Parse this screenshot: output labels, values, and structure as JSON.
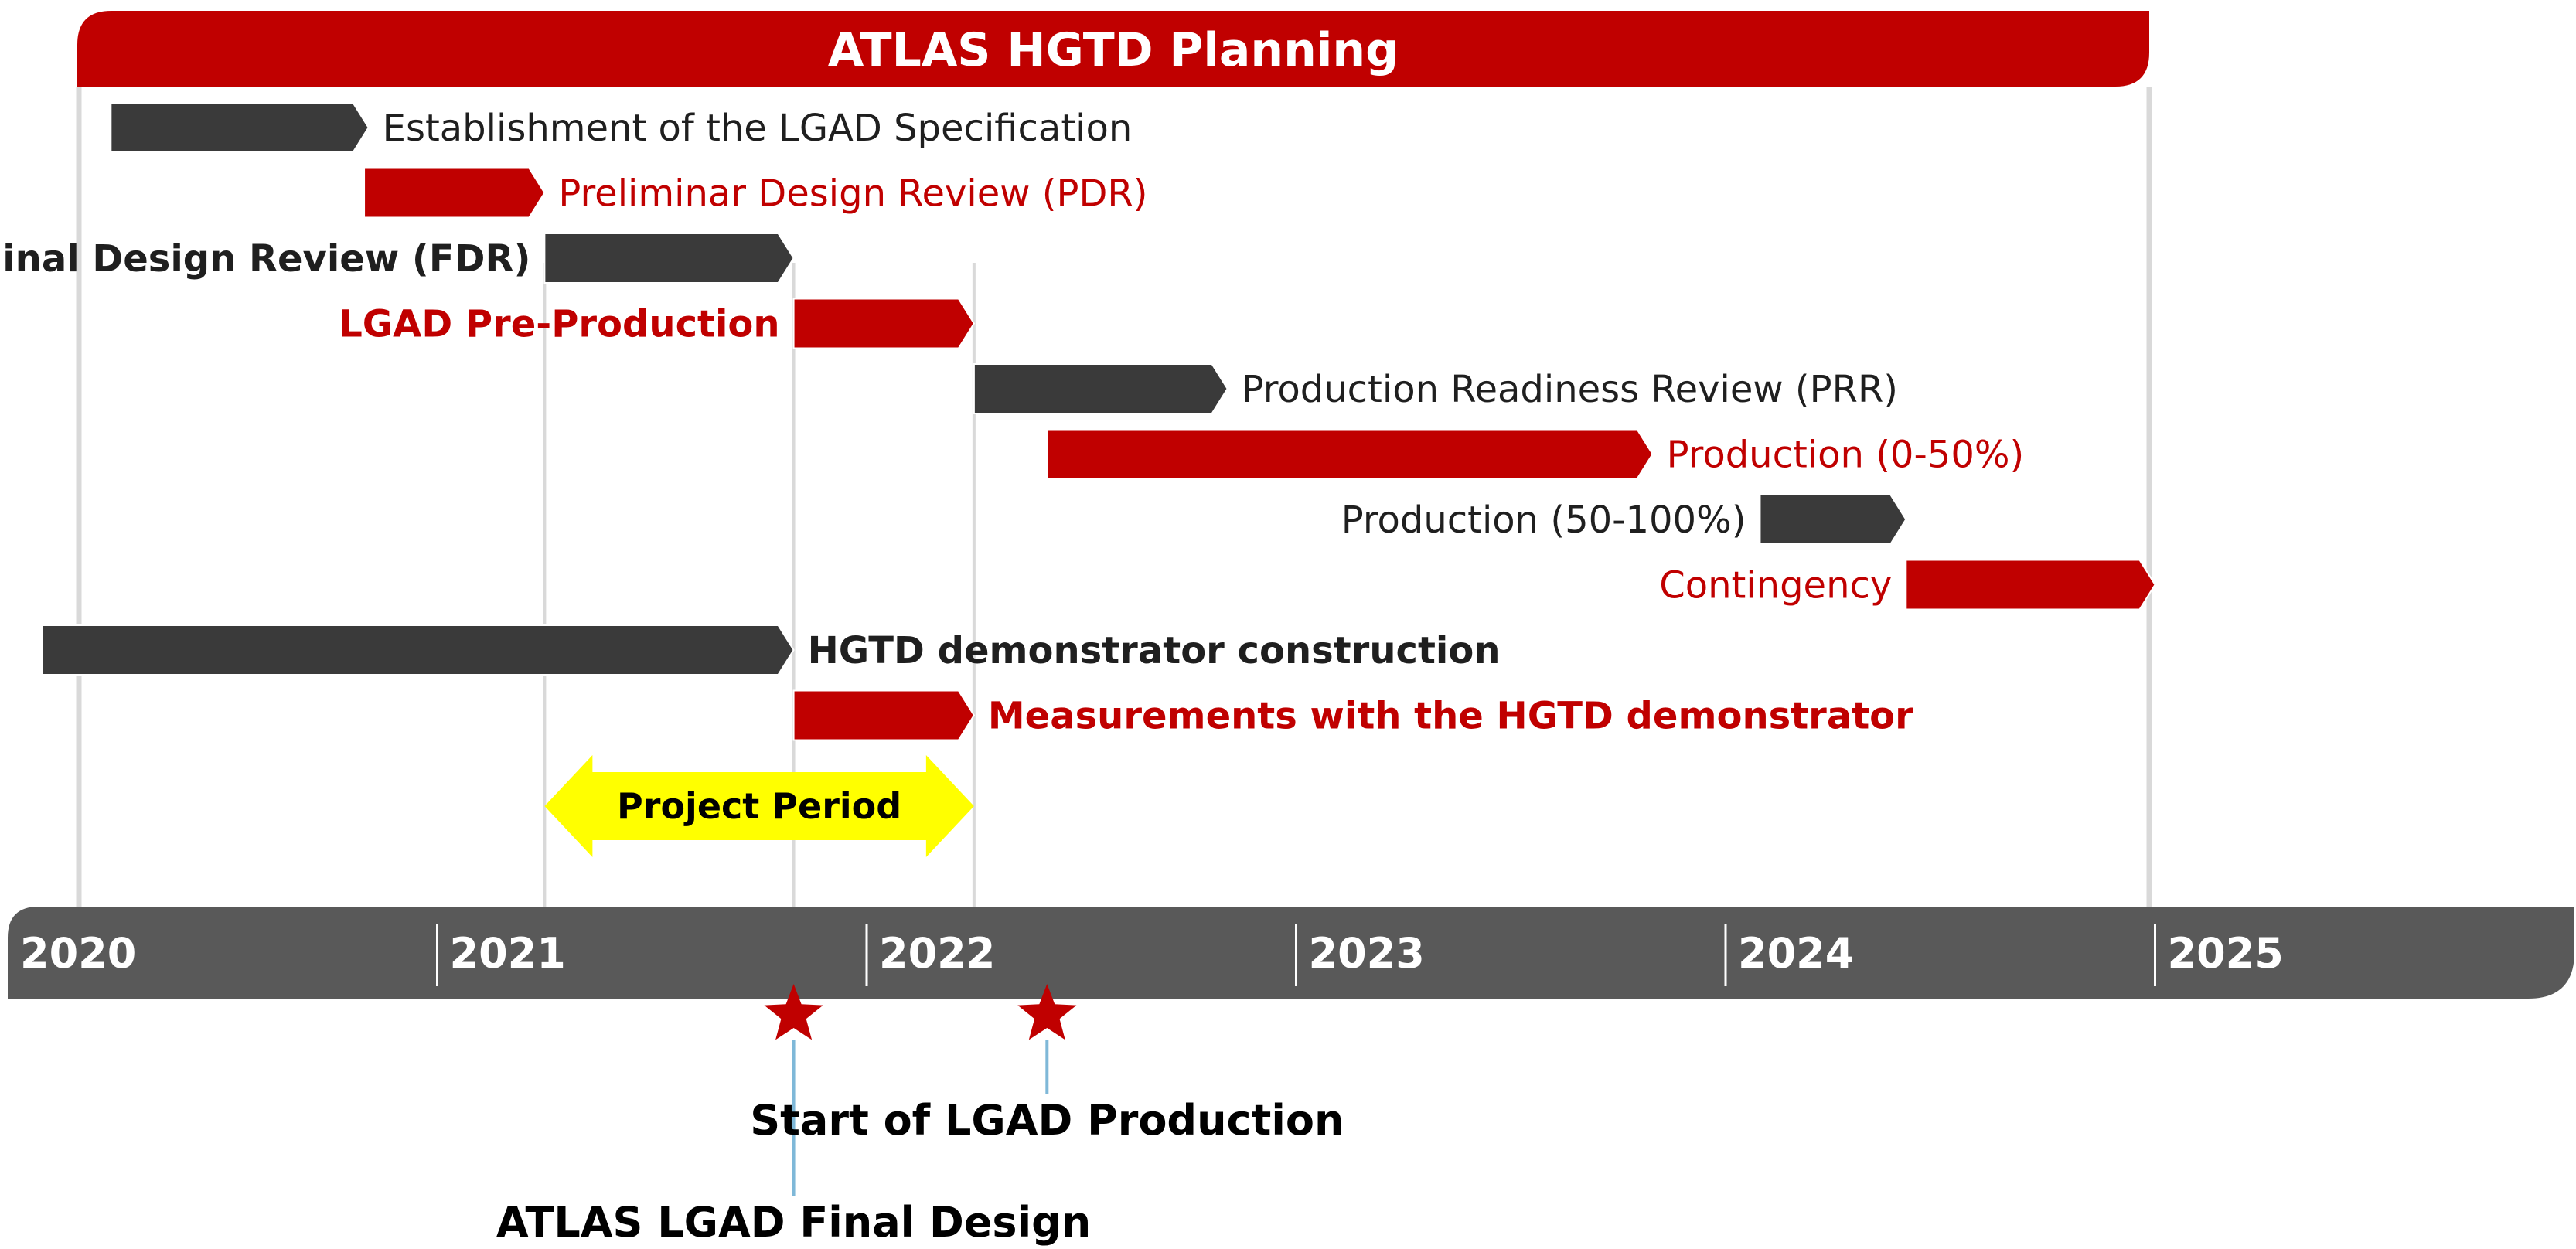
{
  "title": "ATLAS HGTD Planning",
  "colors": {
    "red": "#c00000",
    "dark": "#3a3a3a",
    "axis": "#595959",
    "period": "#ffff00",
    "gridline": "#d9d9d9",
    "milestone_line": "#7fb8d8",
    "white": "#ffffff"
  },
  "timeline": {
    "start_year": 2020,
    "end_year": 2026,
    "years": [
      "2020",
      "2021",
      "2022",
      "2023",
      "2024",
      "2025"
    ]
  },
  "tasks": [
    {
      "label": "Establishment of the LGAD Specification",
      "start": 2020.24,
      "end": 2020.84,
      "color": "dark",
      "label_side": "right",
      "bold": false
    },
    {
      "label": "Preliminar Design Review (PDR)",
      "start": 2020.83,
      "end": 2021.25,
      "color": "red",
      "label_side": "right",
      "bold": false
    },
    {
      "label": "Final Design Review (FDR)",
      "start": 2021.25,
      "end": 2021.83,
      "color": "dark",
      "label_side": "left",
      "bold": true
    },
    {
      "label": "LGAD Pre-Production",
      "start": 2021.83,
      "end": 2022.25,
      "color": "red",
      "label_side": "left",
      "bold": true
    },
    {
      "label": "Production Readiness Review (PRR)",
      "start": 2022.25,
      "end": 2022.84,
      "color": "dark",
      "label_side": "right",
      "bold": false
    },
    {
      "label": "Production (0-50%)",
      "start": 2022.42,
      "end": 2023.83,
      "color": "red",
      "label_side": "right",
      "bold": false
    },
    {
      "label": "Production (50-100%)",
      "start": 2024.08,
      "end": 2024.42,
      "color": "dark",
      "label_side": "left",
      "bold": false
    },
    {
      "label": "Contingency",
      "start": 2024.42,
      "end": 2025.0,
      "color": "red",
      "label_side": "left",
      "bold": false
    },
    {
      "label": "HGTD demonstrator construction",
      "start": 2020.08,
      "end": 2021.83,
      "color": "dark",
      "label_side": "right",
      "bold": true
    },
    {
      "label": "Measurements with the HGTD demonstrator",
      "start": 2021.83,
      "end": 2022.25,
      "color": "red",
      "label_side": "right",
      "bold": true
    }
  ],
  "project_period": {
    "label": "Project Period",
    "start": 2021.25,
    "end": 2022.25
  },
  "milestones": [
    {
      "label": "ATLAS LGAD Final Design",
      "date": 2021.83
    },
    {
      "label": "Start of LGAD Production",
      "date": 2022.42
    }
  ]
}
